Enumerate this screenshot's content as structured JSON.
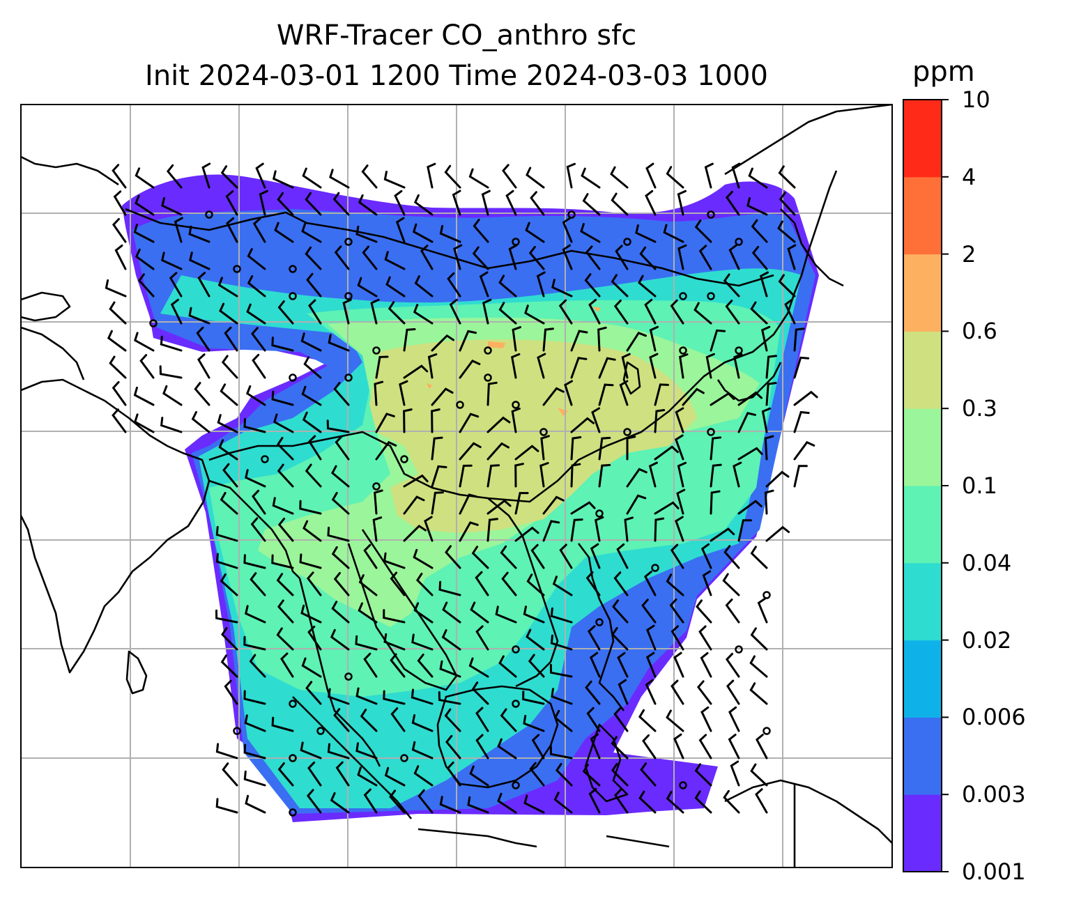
{
  "title": {
    "line1": "WRF-Tracer CO_anthro sfc",
    "line2": "Init 2024-03-01 1200 Time 2024-03-03 1000"
  },
  "colorbar": {
    "unit": "ppm",
    "ticks": [
      "0.001",
      "0.003",
      "0.006",
      "0.02",
      "0.04",
      "0.1",
      "0.3",
      "0.6",
      "2",
      "4",
      "10"
    ],
    "colors": [
      "#6a2bff",
      "#3a6ff2",
      "#0fb2e8",
      "#2fdcd0",
      "#5ef2b4",
      "#9bf59a",
      "#cfe080",
      "#fdb060",
      "#ff7038",
      "#ff2a18"
    ]
  },
  "map": {
    "field": "CO_anthro",
    "overlay": "wind barbs",
    "gridlines": true,
    "coastlines": true
  }
}
